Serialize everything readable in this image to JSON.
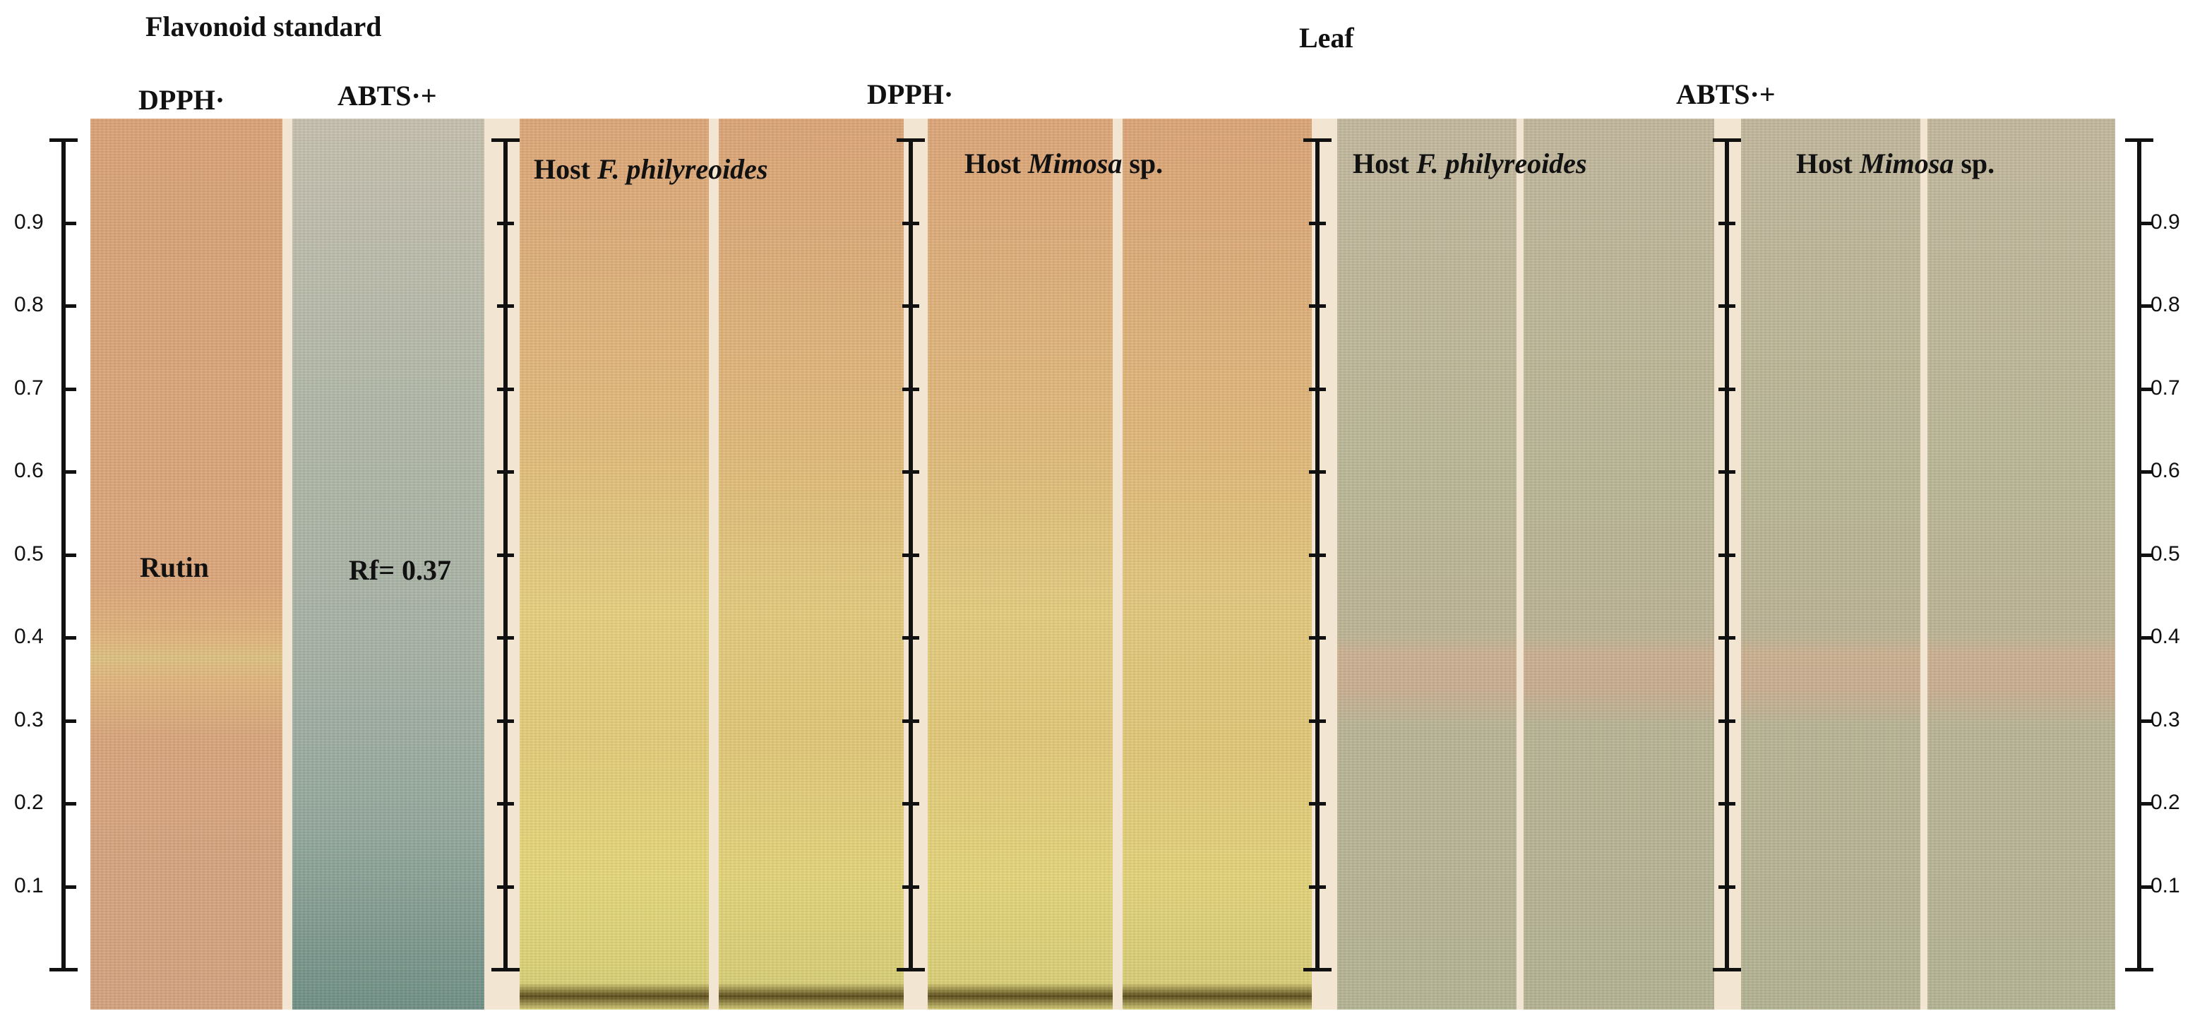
{
  "headers": {
    "flavonoid_standard": "Flavonoid standard",
    "leaf": "Leaf",
    "std_dpph": "DPPH·",
    "std_abts": "ABTS·+",
    "leaf_dpph": "DPPH·",
    "leaf_abts": "ABTS·+"
  },
  "labels": {
    "rutin": "Rutin",
    "rf_value": "Rf= 0.37",
    "host_prefix": "Host",
    "f_philyreoides": "F. philyreoides",
    "mimosa": "Mimosa",
    "sp": "sp."
  },
  "scale_ticks": [
    "0.9",
    "0.8",
    "0.7",
    "0.6",
    "0.5",
    "0.4",
    "0.3",
    "0.2",
    "0.1"
  ],
  "colors": {
    "dpph_strip": "#d8a77a",
    "abts_standard_strip": "#9fb0a6",
    "leaf_dpph_strip": "#dcc27c",
    "leaf_abts_strip": "#b8b597",
    "separator": "#f2e6d2"
  }
}
